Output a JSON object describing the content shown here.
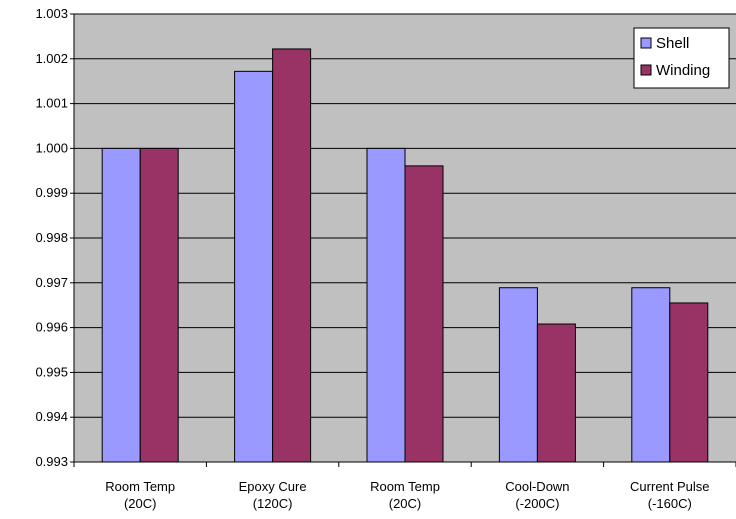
{
  "chart_data": {
    "type": "bar",
    "categories": [
      [
        "Room Temp",
        "(20C)"
      ],
      [
        "Epoxy Cure",
        "(120C)"
      ],
      [
        "Room Temp",
        "(20C)"
      ],
      [
        "Cool-Down",
        "(-200C)"
      ],
      [
        "Current Pulse",
        "(-160C)"
      ]
    ],
    "series": [
      {
        "name": "Shell",
        "values": [
          1.0,
          1.00172,
          1.0,
          0.99689,
          0.99689
        ]
      },
      {
        "name": "Winding",
        "values": [
          1.0,
          1.00222,
          0.99961,
          0.99608,
          0.99655
        ]
      }
    ],
    "ylim": [
      0.993,
      1.003
    ],
    "yticks": [
      "1.003",
      "1.002",
      "1.001",
      "1.000",
      "0.999",
      "0.998",
      "0.997",
      "0.996",
      "0.995",
      "0.994",
      "0.993"
    ],
    "grid": true,
    "legend_position": "top-right",
    "colors": {
      "plot_background": "#c0c0c0",
      "Shell": "#9999ff",
      "Winding": "#993366"
    }
  }
}
